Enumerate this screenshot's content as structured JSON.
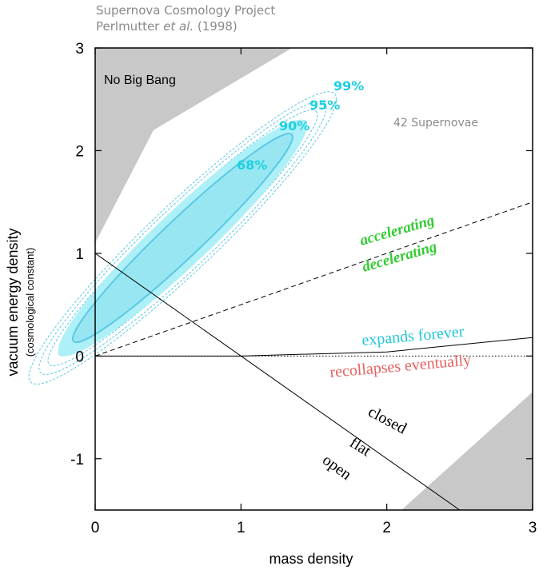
{
  "header": {
    "title_line1": "Supernova Cosmology Project",
    "title_line2_prefix": "Perlmutter ",
    "title_line2_italic": "et al.",
    "title_line2_suffix": "  (1998)"
  },
  "colors": {
    "confidence_fill": "#aef0f7",
    "confidence_line": "#5cc8e4",
    "confidence_label": "#1fd0e0",
    "region_gray": "#c8c8c8",
    "accelerating_green": "#33cc33",
    "expands_cyan": "#22c8d8",
    "recollapses_red": "#e86060"
  },
  "chart_data": {
    "type": "contour",
    "title": "Supernova Cosmology Project",
    "xlabel": "mass density",
    "ylabel": "vacuum energy density",
    "ylabel_sub": "(cosmological constant)",
    "xlim": [
      0,
      3
    ],
    "ylim": [
      -1.5,
      3
    ],
    "x_ticks": [
      "0",
      "1",
      "2",
      "3"
    ],
    "y_ticks": [
      "-1",
      "0",
      "1",
      "2",
      "3"
    ],
    "x_tick_values": [
      0,
      1,
      2,
      3
    ],
    "y_tick_values": [
      -1,
      0,
      1,
      2,
      3
    ],
    "confidence_regions": [
      {
        "level": "68%",
        "x_range": [
          0.0,
          1.3
        ],
        "y_range": [
          0.3,
          2.05
        ]
      },
      {
        "level": "90%",
        "x_range": [
          0.0,
          1.45
        ],
        "y_range": [
          0.2,
          2.3
        ]
      },
      {
        "level": "95%",
        "x_range": [
          0.0,
          1.55
        ],
        "y_range": [
          0.1,
          2.5
        ]
      },
      {
        "level": "99%",
        "x_range": [
          0.0,
          1.75
        ],
        "y_range": [
          -0.05,
          2.6
        ]
      }
    ],
    "lines": [
      {
        "name": "flat",
        "points": [
          [
            0,
            1
          ],
          [
            2.5,
            -1.5
          ]
        ],
        "style": "solid"
      },
      {
        "name": "accelerating/decelerating boundary",
        "points": [
          [
            0,
            0
          ],
          [
            3,
            1.5
          ]
        ],
        "style": "dashed"
      },
      {
        "name": "expands forever / recollapses eventually",
        "points": [
          [
            0,
            0
          ],
          [
            1,
            0
          ],
          [
            2,
            0.04
          ],
          [
            3,
            0.18
          ]
        ],
        "style": "solid"
      },
      {
        "name": "zero line",
        "points": [
          [
            0,
            0
          ],
          [
            3,
            0
          ]
        ],
        "style": "dotted"
      }
    ],
    "shaded_regions": [
      {
        "label": "No Big Bang",
        "points": [
          [
            0,
            3
          ],
          [
            1.35,
            3
          ],
          [
            0.4,
            2.2
          ],
          [
            0,
            1.1
          ]
        ]
      },
      {
        "label": "",
        "points": [
          [
            2.1,
            -1.5
          ],
          [
            3,
            -1.5
          ],
          [
            3,
            -0.35
          ]
        ]
      }
    ],
    "region_labels": {
      "no_big_bang": "No Big Bang",
      "supernovae_count": "42 Supernovae",
      "c68": "68%",
      "c90": "90%",
      "c95": "95%",
      "c99": "99%",
      "accelerating": "accelerating",
      "decelerating": "decelerating",
      "expands_forever": "expands forever",
      "recollapses_eventually": "recollapses eventually",
      "closed": "closed",
      "flat": "flat",
      "open": "open"
    }
  }
}
